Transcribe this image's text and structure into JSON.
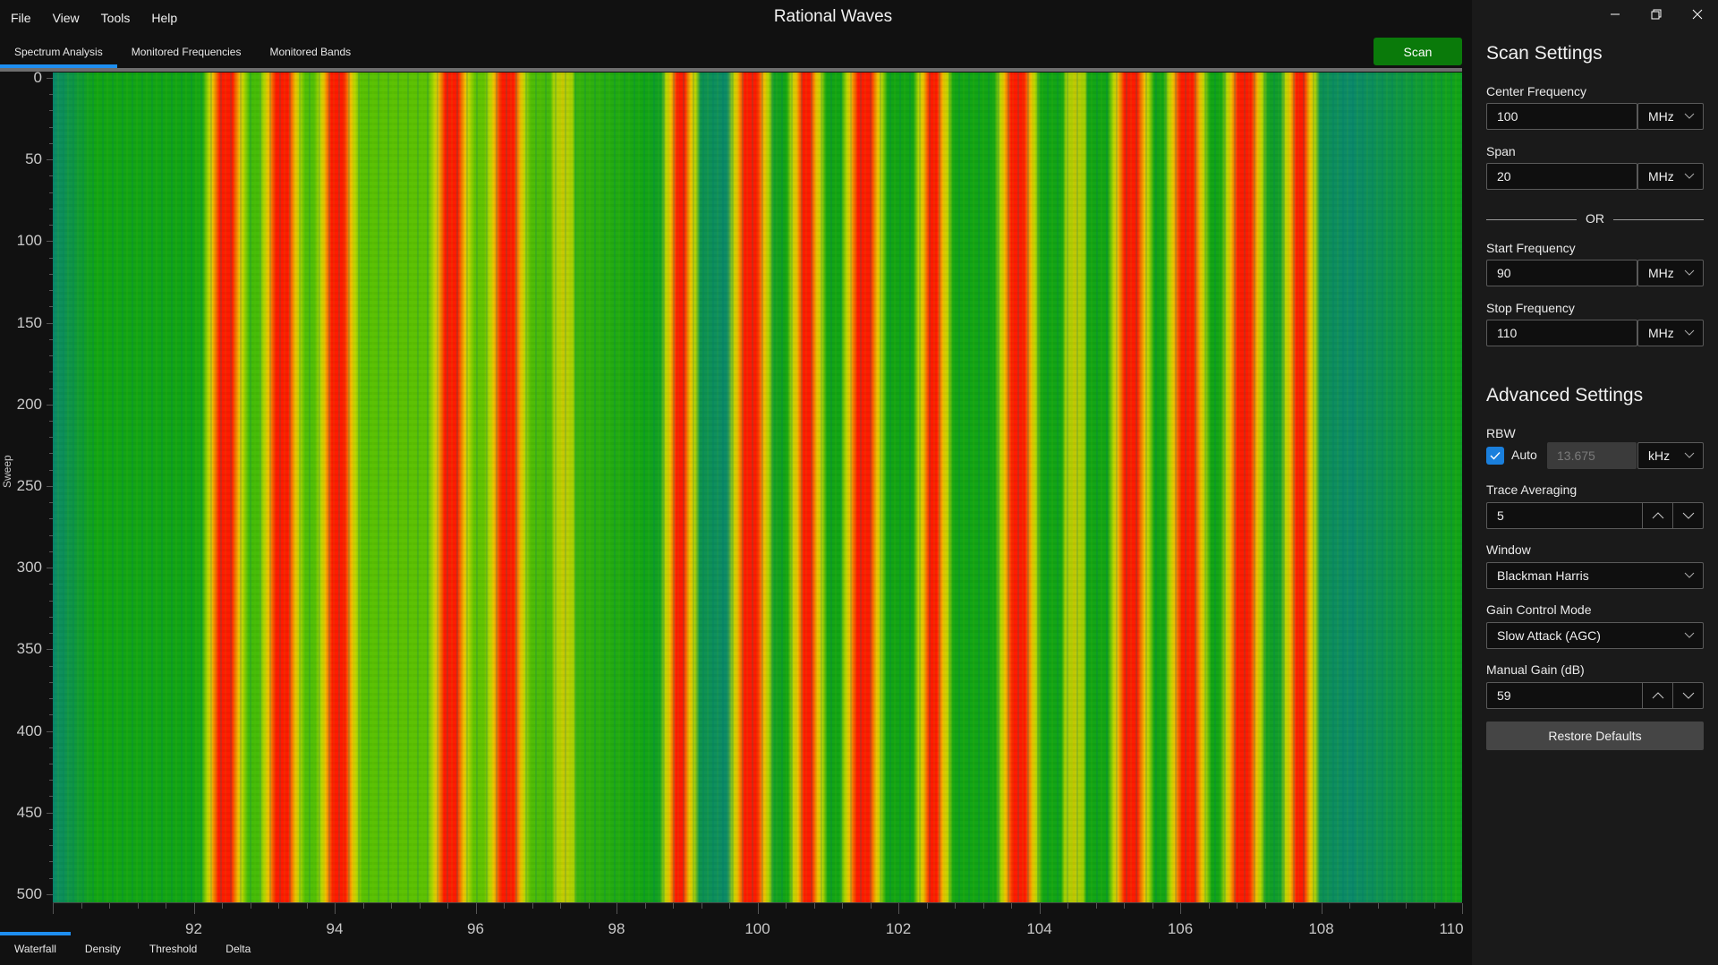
{
  "app": {
    "title": "Rational Waves"
  },
  "menu": [
    "File",
    "View",
    "Tools",
    "Help"
  ],
  "top_tabs": [
    {
      "label": "Spectrum Analysis",
      "active": true
    },
    {
      "label": "Monitored Frequencies",
      "active": false
    },
    {
      "label": "Monitored Bands",
      "active": false
    }
  ],
  "scan_button": {
    "label": "Scan",
    "color": "#0a7a0a"
  },
  "window_controls": {
    "minimize": "—",
    "restore": "❐",
    "close": "✕"
  },
  "waterfall": {
    "y_axis_title": "Sweep",
    "y_ticks": [
      0,
      50,
      100,
      150,
      200,
      250,
      300,
      350,
      400,
      450,
      500
    ],
    "y_range": [
      0,
      505
    ],
    "x_ticks": [
      92,
      94,
      96,
      98,
      100,
      102,
      104,
      106,
      108,
      110
    ],
    "x_range": [
      90,
      110
    ],
    "x_unit": "MHz",
    "signals_mhz": [
      {
        "f": 92.45,
        "level": "strong"
      },
      {
        "f": 93.25,
        "level": "strong"
      },
      {
        "f": 94.05,
        "level": "strong"
      },
      {
        "f": 95.65,
        "level": "strong"
      },
      {
        "f": 96.45,
        "level": "strong"
      },
      {
        "f": 97.25,
        "level": "weak"
      },
      {
        "f": 98.9,
        "level": "medium"
      },
      {
        "f": 99.9,
        "level": "strong"
      },
      {
        "f": 100.7,
        "level": "medium"
      },
      {
        "f": 101.5,
        "level": "strong"
      },
      {
        "f": 102.5,
        "level": "medium"
      },
      {
        "f": 103.7,
        "level": "strong"
      },
      {
        "f": 104.5,
        "level": "weak"
      },
      {
        "f": 105.3,
        "level": "strong"
      },
      {
        "f": 106.1,
        "level": "strong"
      },
      {
        "f": 106.9,
        "level": "strong"
      },
      {
        "f": 107.7,
        "level": "medium"
      }
    ],
    "colors": {
      "floor_low": "#0b8a6a",
      "floor": "#11a514",
      "warm": "#b8d600",
      "mid": "#f0c000",
      "hot": "#ff1a00"
    }
  },
  "bottom_tabs": [
    {
      "label": "Waterfall",
      "active": true
    },
    {
      "label": "Density",
      "active": false
    },
    {
      "label": "Threshold",
      "active": false
    },
    {
      "label": "Delta",
      "active": false
    }
  ],
  "scan_settings": {
    "title": "Scan Settings",
    "center_frequency": {
      "label": "Center Frequency",
      "value": "100",
      "unit": "MHz"
    },
    "span": {
      "label": "Span",
      "value": "20",
      "unit": "MHz"
    },
    "or_label": "OR",
    "start_frequency": {
      "label": "Start Frequency",
      "value": "90",
      "unit": "MHz"
    },
    "stop_frequency": {
      "label": "Stop Frequency",
      "value": "110",
      "unit": "MHz"
    }
  },
  "advanced_settings": {
    "title": "Advanced Settings",
    "rbw": {
      "label": "RBW",
      "auto_label": "Auto",
      "auto_checked": true,
      "value": "13.675",
      "unit": "kHz"
    },
    "trace_averaging": {
      "label": "Trace Averaging",
      "value": "5"
    },
    "window": {
      "label": "Window",
      "value": "Blackman Harris"
    },
    "gain_control_mode": {
      "label": "Gain Control Mode",
      "value": "Slow Attack (AGC)"
    },
    "manual_gain": {
      "label": "Manual Gain (dB)",
      "value": "59"
    },
    "restore_defaults_label": "Restore Defaults"
  }
}
